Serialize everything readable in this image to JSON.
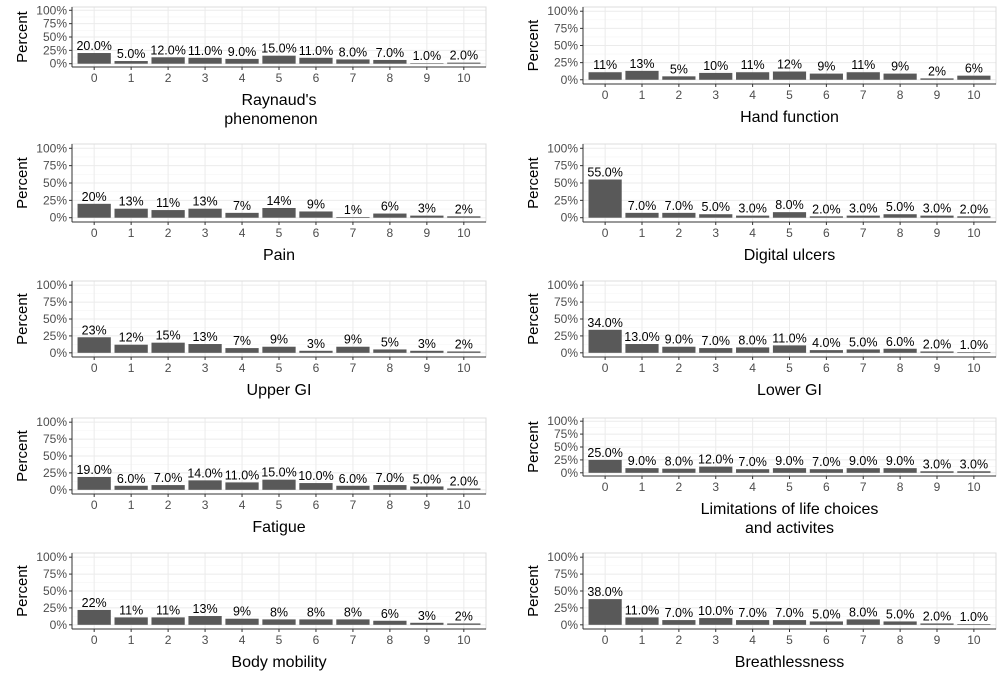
{
  "chart_data": [
    {
      "type": "bar",
      "xlabel": "Raynaud's\nphenomenon",
      "ylabel": "Percent",
      "categories": [
        "0",
        "1",
        "2",
        "3",
        "4",
        "5",
        "6",
        "7",
        "8",
        "9",
        "10"
      ],
      "values": [
        20,
        5,
        12,
        11,
        9,
        15,
        11,
        8,
        7,
        1,
        2
      ],
      "labels": [
        "20.0%",
        "5.0%",
        "12.0%",
        "11.0%",
        "9.0%",
        "15.0%",
        "11.0%",
        "8.0%",
        "7.0%",
        "1.0%",
        "2.0%"
      ],
      "yticks": [
        "0%",
        "25%",
        "50%",
        "75%",
        "100%"
      ],
      "ylim": [
        0,
        100
      ]
    },
    {
      "type": "bar",
      "xlabel": "Hand function",
      "ylabel": "Percent",
      "categories": [
        "0",
        "1",
        "2",
        "3",
        "4",
        "5",
        "6",
        "7",
        "8",
        "9",
        "10"
      ],
      "values": [
        11,
        13,
        5,
        10,
        11,
        12,
        9,
        11,
        9,
        2,
        6
      ],
      "labels": [
        "11%",
        "13%",
        "5%",
        "10%",
        "11%",
        "12%",
        "9%",
        "11%",
        "9%",
        "2%",
        "6%"
      ],
      "yticks": [
        "0%",
        "25%",
        "50%",
        "75%",
        "100%"
      ],
      "ylim": [
        0,
        100
      ]
    },
    {
      "type": "bar",
      "xlabel": "Pain",
      "ylabel": "Percent",
      "categories": [
        "0",
        "1",
        "2",
        "3",
        "4",
        "5",
        "6",
        "7",
        "8",
        "9",
        "10"
      ],
      "values": [
        20,
        13,
        11,
        13,
        7,
        14,
        9,
        1,
        6,
        3,
        2
      ],
      "labels": [
        "20%",
        "13%",
        "11%",
        "13%",
        "7%",
        "14%",
        "9%",
        "1%",
        "6%",
        "3%",
        "2%"
      ],
      "yticks": [
        "0%",
        "25%",
        "50%",
        "75%",
        "100%"
      ],
      "ylim": [
        0,
        100
      ]
    },
    {
      "type": "bar",
      "xlabel": "Digital ulcers",
      "ylabel": "Percent",
      "categories": [
        "0",
        "1",
        "2",
        "3",
        "4",
        "5",
        "6",
        "7",
        "8",
        "9",
        "10"
      ],
      "values": [
        55,
        7,
        7,
        5,
        3,
        8,
        2,
        3,
        5,
        3,
        2
      ],
      "labels": [
        "55.0%",
        "7.0%",
        "7.0%",
        "5.0%",
        "3.0%",
        "8.0%",
        "2.0%",
        "3.0%",
        "5.0%",
        "3.0%",
        "2.0%"
      ],
      "yticks": [
        "0%",
        "25%",
        "50%",
        "75%",
        "100%"
      ],
      "ylim": [
        0,
        100
      ]
    },
    {
      "type": "bar",
      "xlabel": "Upper GI",
      "ylabel": "Percent",
      "categories": [
        "0",
        "1",
        "2",
        "3",
        "4",
        "5",
        "6",
        "7",
        "8",
        "9",
        "10"
      ],
      "values": [
        23,
        12,
        15,
        13,
        7,
        9,
        3,
        9,
        5,
        3,
        2
      ],
      "labels": [
        "23%",
        "12%",
        "15%",
        "13%",
        "7%",
        "9%",
        "3%",
        "9%",
        "5%",
        "3%",
        "2%"
      ],
      "yticks": [
        "0%",
        "25%",
        "50%",
        "75%",
        "100%"
      ],
      "ylim": [
        0,
        100
      ]
    },
    {
      "type": "bar",
      "xlabel": "Lower GI",
      "ylabel": "Percent",
      "categories": [
        "0",
        "1",
        "2",
        "3",
        "4",
        "5",
        "6",
        "7",
        "8",
        "9",
        "10"
      ],
      "values": [
        34,
        13,
        9,
        7,
        8,
        11,
        4,
        5,
        6,
        2,
        1
      ],
      "labels": [
        "34.0%",
        "13.0%",
        "9.0%",
        "7.0%",
        "8.0%",
        "11.0%",
        "4.0%",
        "5.0%",
        "6.0%",
        "2.0%",
        "1.0%"
      ],
      "yticks": [
        "0%",
        "25%",
        "50%",
        "75%",
        "100%"
      ],
      "ylim": [
        0,
        100
      ]
    },
    {
      "type": "bar",
      "xlabel": "Fatigue",
      "ylabel": "Percent",
      "categories": [
        "0",
        "1",
        "2",
        "3",
        "4",
        "5",
        "6",
        "7",
        "8",
        "9",
        "10"
      ],
      "values": [
        19,
        6,
        7,
        14,
        11,
        15,
        10,
        6,
        7,
        5,
        2
      ],
      "labels": [
        "19.0%",
        "6.0%",
        "7.0%",
        "14.0%",
        "11.0%",
        "15.0%",
        "10.0%",
        "6.0%",
        "7.0%",
        "5.0%",
        "2.0%"
      ],
      "yticks": [
        "0%",
        "25%",
        "50%",
        "75%",
        "100%"
      ],
      "ylim": [
        0,
        100
      ]
    },
    {
      "type": "bar",
      "xlabel": "Limitations of life choices\nand activites",
      "ylabel": "Percent",
      "categories": [
        "0",
        "1",
        "2",
        "3",
        "4",
        "5",
        "6",
        "7",
        "8",
        "9",
        "10"
      ],
      "values": [
        25,
        9,
        8,
        12,
        7,
        9,
        7,
        9,
        9,
        3,
        3
      ],
      "labels": [
        "25.0%",
        "9.0%",
        "8.0%",
        "12.0%",
        "7.0%",
        "9.0%",
        "7.0%",
        "9.0%",
        "9.0%",
        "3.0%",
        "3.0%"
      ],
      "yticks": [
        "0%",
        "25%",
        "50%",
        "75%",
        "100%"
      ],
      "ylim": [
        0,
        100
      ]
    },
    {
      "type": "bar",
      "xlabel": "Body mobility",
      "ylabel": "Percent",
      "categories": [
        "0",
        "1",
        "2",
        "3",
        "4",
        "5",
        "6",
        "7",
        "8",
        "9",
        "10"
      ],
      "values": [
        22,
        11,
        11,
        13,
        9,
        8,
        8,
        8,
        6,
        3,
        2
      ],
      "labels": [
        "22%",
        "11%",
        "11%",
        "13%",
        "9%",
        "8%",
        "8%",
        "8%",
        "6%",
        "3%",
        "2%"
      ],
      "yticks": [
        "0%",
        "25%",
        "50%",
        "75%",
        "100%"
      ],
      "ylim": [
        0,
        100
      ]
    },
    {
      "type": "bar",
      "xlabel": "Breathlessness",
      "ylabel": "Percent",
      "categories": [
        "0",
        "1",
        "2",
        "3",
        "4",
        "5",
        "6",
        "7",
        "8",
        "9",
        "10"
      ],
      "values": [
        38,
        11,
        7,
        10,
        7,
        7,
        5,
        8,
        5,
        2,
        1
      ],
      "labels": [
        "38.0%",
        "11.0%",
        "7.0%",
        "10.0%",
        "7.0%",
        "7.0%",
        "5.0%",
        "8.0%",
        "5.0%",
        "2.0%",
        "1.0%"
      ],
      "yticks": [
        "0%",
        "25%",
        "50%",
        "75%",
        "100%"
      ],
      "ylim": [
        0,
        100
      ]
    }
  ],
  "colors": {
    "bar": "#595959",
    "grid_major": "#ebebeb",
    "grid_minor": "#f5f5f5",
    "axis_text": "#4d4d4d",
    "text": "#000000",
    "panel_border": "#333333"
  }
}
